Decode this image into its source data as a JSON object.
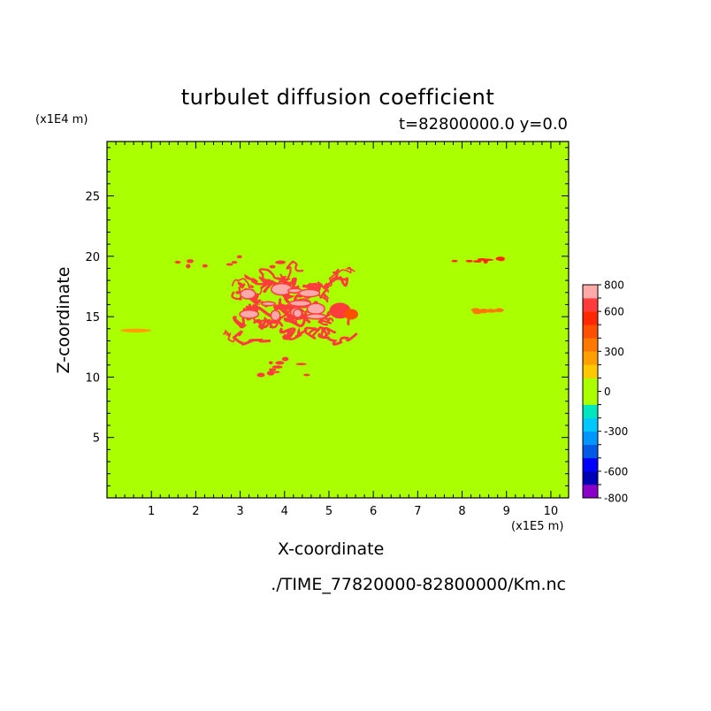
{
  "chart_data": {
    "type": "heatmap",
    "title": "turbulet diffusion coefficient",
    "subtitle": "t=82800000.0 y=0.0",
    "xlabel": "X-coordinate",
    "ylabel": "Z-coordinate",
    "x_unit": "(x1E5 m)",
    "y_unit": "(x1E4 m)",
    "source_file": "./TIME_77820000-82800000/Km.nc",
    "xlim": [
      0,
      10.4
    ],
    "ylim": [
      0,
      29.5
    ],
    "x_ticks": [
      1,
      2,
      3,
      4,
      5,
      6,
      7,
      8,
      9,
      10
    ],
    "y_ticks": [
      5,
      10,
      15,
      20,
      25
    ],
    "background_level": 0,
    "colorbar": {
      "levels": [
        -800,
        -700,
        -600,
        -500,
        -400,
        -300,
        -200,
        -100,
        0,
        100,
        200,
        300,
        400,
        500,
        600,
        700,
        800
      ],
      "labels": [
        800,
        600,
        300,
        0,
        -300,
        -600,
        -800
      ],
      "colors": [
        "#8a00c8",
        "#0000b4",
        "#0000ff",
        "#005ae6",
        "#0096ff",
        "#00c8ff",
        "#00e6be",
        "#aaff00",
        "#aaff00",
        "#ffc800",
        "#ffa000",
        "#ff7800",
        "#ff5000",
        "#ff2800",
        "#ff3c3c",
        "#ffaaaa"
      ]
    },
    "features": [
      {
        "name": "main turbulent patch",
        "x": [
          2.7,
          5.8
        ],
        "z": [
          12.5,
          19.5
        ],
        "level_max": 800
      },
      {
        "name": "upper fragments",
        "x": [
          1.5,
          4.5
        ],
        "z": [
          19.0,
          20.0
        ],
        "level": 600
      },
      {
        "name": "lower fragments",
        "x": [
          3.0,
          4.8
        ],
        "z": [
          10.0,
          11.5
        ],
        "level": 600
      },
      {
        "name": "left streak",
        "x": [
          0.3,
          1.0
        ],
        "z": [
          13.8,
          13.9
        ],
        "level": 200
      },
      {
        "name": "right streak",
        "x": [
          8.3,
          8.9
        ],
        "z": [
          15.3,
          15.6
        ],
        "level": 300
      },
      {
        "name": "right fragments",
        "x": [
          7.7,
          9.0
        ],
        "z": [
          19.5,
          20.0
        ],
        "level": 500
      }
    ]
  }
}
